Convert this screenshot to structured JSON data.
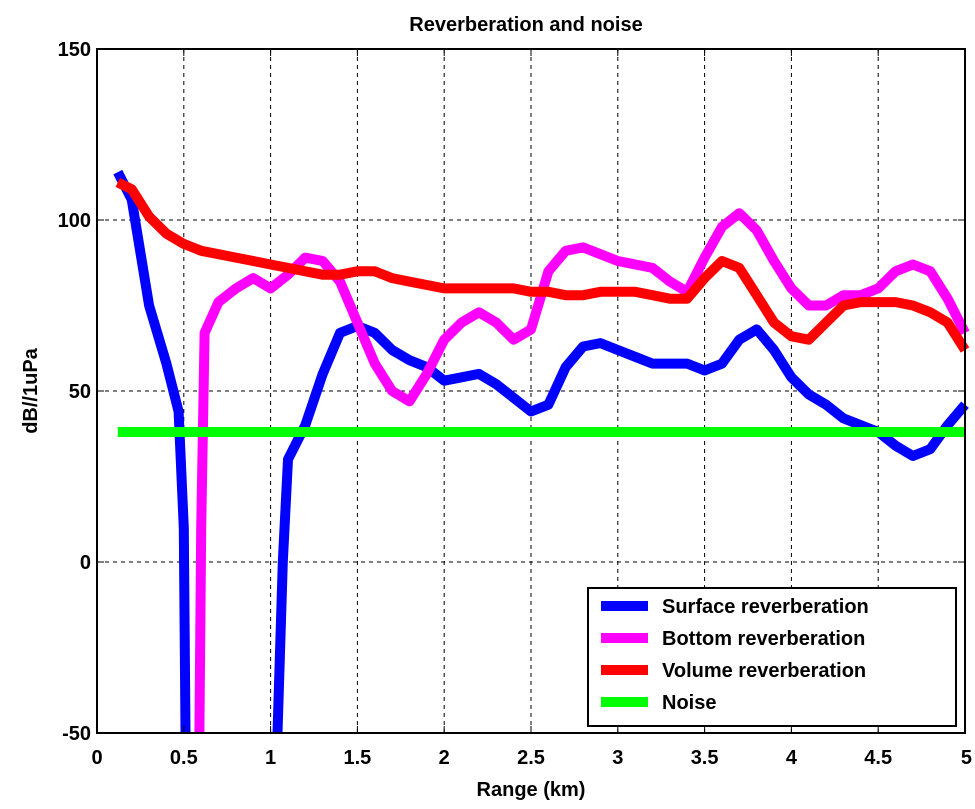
{
  "chart_data": {
    "type": "line",
    "title": "Reverberation and noise",
    "xlabel": "Range (km)",
    "ylabel": "dB//1uPa",
    "xlim": [
      0,
      5
    ],
    "ylim": [
      -50,
      150
    ],
    "xticks": [
      0,
      0.5,
      1,
      1.5,
      2,
      2.5,
      3,
      3.5,
      4,
      4.5,
      5
    ],
    "xtick_labels": [
      "0",
      "0.5",
      "1",
      "1.5",
      "2",
      "2.5",
      "3",
      "3.5",
      "4",
      "4.5",
      "5"
    ],
    "yticks": [
      -50,
      0,
      50,
      100,
      150
    ],
    "ytick_labels": [
      "-50",
      "0",
      "50",
      "100",
      "150"
    ],
    "grid": true,
    "legend_position": "bottom-right",
    "series": [
      {
        "name": "Surface reverberation",
        "color": "#0000ff",
        "points": [
          [
            0.12,
            114
          ],
          [
            0.2,
            106
          ],
          [
            0.3,
            75
          ],
          [
            0.4,
            58
          ],
          [
            0.47,
            44
          ],
          [
            0.5,
            10
          ],
          [
            0.51,
            -50
          ],
          [
            null,
            null
          ],
          [
            1.04,
            -50
          ],
          [
            1.07,
            0
          ],
          [
            1.1,
            30
          ],
          [
            1.2,
            40
          ],
          [
            1.3,
            55
          ],
          [
            1.4,
            67
          ],
          [
            1.5,
            69
          ],
          [
            1.6,
            67
          ],
          [
            1.7,
            62
          ],
          [
            1.8,
            59
          ],
          [
            1.9,
            57
          ],
          [
            2.0,
            53
          ],
          [
            2.1,
            54
          ],
          [
            2.2,
            55
          ],
          [
            2.3,
            52
          ],
          [
            2.4,
            48
          ],
          [
            2.5,
            44
          ],
          [
            2.6,
            46
          ],
          [
            2.7,
            57
          ],
          [
            2.8,
            63
          ],
          [
            2.9,
            64
          ],
          [
            3.0,
            62
          ],
          [
            3.1,
            60
          ],
          [
            3.2,
            58
          ],
          [
            3.3,
            58
          ],
          [
            3.4,
            58
          ],
          [
            3.5,
            56
          ],
          [
            3.6,
            58
          ],
          [
            3.7,
            65
          ],
          [
            3.8,
            68
          ],
          [
            3.9,
            62
          ],
          [
            4.0,
            54
          ],
          [
            4.1,
            49
          ],
          [
            4.2,
            46
          ],
          [
            4.3,
            42
          ],
          [
            4.4,
            40
          ],
          [
            4.5,
            38
          ],
          [
            4.6,
            34
          ],
          [
            4.7,
            31
          ],
          [
            4.8,
            33
          ],
          [
            4.9,
            40
          ],
          [
            5.0,
            46
          ]
        ]
      },
      {
        "name": "Bottom reverberation",
        "color": "#ff00ff",
        "points": [
          [
            0.59,
            -50
          ],
          [
            0.6,
            10
          ],
          [
            0.62,
            67
          ],
          [
            0.7,
            76
          ],
          [
            0.8,
            80
          ],
          [
            0.9,
            83
          ],
          [
            1.0,
            80
          ],
          [
            1.1,
            84
          ],
          [
            1.2,
            89
          ],
          [
            1.3,
            88
          ],
          [
            1.4,
            82
          ],
          [
            1.5,
            70
          ],
          [
            1.6,
            58
          ],
          [
            1.7,
            50
          ],
          [
            1.8,
            47
          ],
          [
            1.9,
            55
          ],
          [
            2.0,
            65
          ],
          [
            2.1,
            70
          ],
          [
            2.2,
            73
          ],
          [
            2.3,
            70
          ],
          [
            2.4,
            65
          ],
          [
            2.5,
            68
          ],
          [
            2.6,
            85
          ],
          [
            2.7,
            91
          ],
          [
            2.8,
            92
          ],
          [
            2.9,
            90
          ],
          [
            3.0,
            88
          ],
          [
            3.1,
            87
          ],
          [
            3.2,
            86
          ],
          [
            3.3,
            82
          ],
          [
            3.4,
            79
          ],
          [
            3.5,
            89
          ],
          [
            3.6,
            98
          ],
          [
            3.7,
            102
          ],
          [
            3.8,
            97
          ],
          [
            3.9,
            88
          ],
          [
            4.0,
            80
          ],
          [
            4.1,
            75
          ],
          [
            4.2,
            75
          ],
          [
            4.3,
            78
          ],
          [
            4.4,
            78
          ],
          [
            4.5,
            80
          ],
          [
            4.6,
            85
          ],
          [
            4.7,
            87
          ],
          [
            4.8,
            85
          ],
          [
            4.9,
            77
          ],
          [
            5.0,
            67
          ]
        ]
      },
      {
        "name": "Volume reverberation",
        "color": "#ff0000",
        "points": [
          [
            0.12,
            111
          ],
          [
            0.2,
            109
          ],
          [
            0.3,
            101
          ],
          [
            0.4,
            96
          ],
          [
            0.5,
            93
          ],
          [
            0.6,
            91
          ],
          [
            0.7,
            90
          ],
          [
            0.8,
            89
          ],
          [
            0.9,
            88
          ],
          [
            1.0,
            87
          ],
          [
            1.1,
            86
          ],
          [
            1.2,
            85
          ],
          [
            1.3,
            84
          ],
          [
            1.4,
            84
          ],
          [
            1.5,
            85
          ],
          [
            1.6,
            85
          ],
          [
            1.7,
            83
          ],
          [
            1.8,
            82
          ],
          [
            1.9,
            81
          ],
          [
            2.0,
            80
          ],
          [
            2.1,
            80
          ],
          [
            2.2,
            80
          ],
          [
            2.3,
            80
          ],
          [
            2.4,
            80
          ],
          [
            2.5,
            79
          ],
          [
            2.6,
            79
          ],
          [
            2.7,
            78
          ],
          [
            2.8,
            78
          ],
          [
            2.9,
            79
          ],
          [
            3.0,
            79
          ],
          [
            3.1,
            79
          ],
          [
            3.2,
            78
          ],
          [
            3.3,
            77
          ],
          [
            3.4,
            77
          ],
          [
            3.5,
            83
          ],
          [
            3.6,
            88
          ],
          [
            3.7,
            86
          ],
          [
            3.8,
            78
          ],
          [
            3.9,
            70
          ],
          [
            4.0,
            66
          ],
          [
            4.1,
            65
          ],
          [
            4.2,
            70
          ],
          [
            4.3,
            75
          ],
          [
            4.4,
            76
          ],
          [
            4.5,
            76
          ],
          [
            4.6,
            76
          ],
          [
            4.7,
            75
          ],
          [
            4.8,
            73
          ],
          [
            4.9,
            70
          ],
          [
            5.0,
            62
          ]
        ]
      },
      {
        "name": "Noise",
        "color": "#00ff00",
        "points": [
          [
            0.12,
            38
          ],
          [
            5.0,
            38
          ]
        ]
      }
    ]
  }
}
